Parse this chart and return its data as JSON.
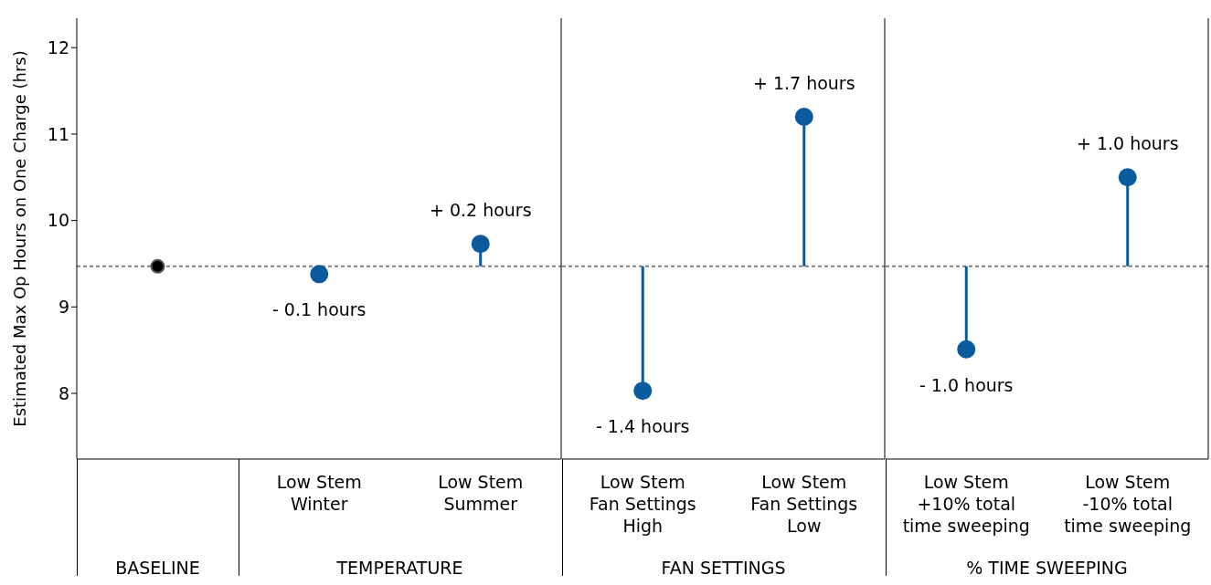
{
  "chart_data": [
    {
      "type": "scatter",
      "xlabel": "BASELINE",
      "ylabel": "Estimated Max Op Hours on One Charge (hrs)",
      "categories": [
        null
      ],
      "values": [
        9.47
      ],
      "color": "#000000",
      "marker": "circle",
      "ylim": [
        7.24,
        12.34
      ],
      "yticks": [
        8,
        9,
        10,
        11,
        12
      ],
      "ref_lines": [
        {
          "axis": "y",
          "value": 9.47,
          "color": "#808080",
          "line_style": "dashed"
        }
      ]
    },
    {
      "type": "scatter",
      "xlabel": "TEMPERATURE",
      "categories": [
        "Low Stem\nWinter",
        "Low Stem\nSummer"
      ],
      "values": [
        9.38,
        9.73
      ],
      "errors": [
        [
          9.38,
          9.47
        ],
        [
          9.47,
          9.73
        ]
      ],
      "color": "#0b5a9e",
      "marker": "circle",
      "ylim": [
        7.24,
        12.34
      ],
      "yticks": [
        8,
        9,
        10,
        11,
        12
      ],
      "tick_labels": "x",
      "annotations": [
        {
          "text": "- 0.1 hours",
          "x": "Low Stem\nWinter",
          "y": 9.38
        },
        {
          "text": "+ 0.2 hours",
          "x": "Low Stem\nSummer",
          "y": 9.73
        }
      ],
      "ref_lines": [
        {
          "axis": "y",
          "value": 9.47,
          "color": "#808080",
          "line_style": "dashed"
        }
      ]
    },
    {
      "type": "scatter",
      "xlabel": "FAN SETTINGS",
      "categories": [
        "Low Stem\nFan Settings\nHigh",
        "Low Stem\nFan Settings\nLow"
      ],
      "values": [
        8.03,
        11.2
      ],
      "errors": [
        [
          8.03,
          9.47
        ],
        [
          9.47,
          11.2
        ]
      ],
      "color": "#0b5a9e",
      "marker": "circle",
      "ylim": [
        7.24,
        12.34
      ],
      "yticks": [
        8,
        9,
        10,
        11,
        12
      ],
      "tick_labels": "x",
      "annotations": [
        {
          "text": "- 1.4 hours",
          "x": "Low Stem\nFan Settings\nHigh",
          "y": 8.03
        },
        {
          "text": "+ 1.7 hours",
          "x": "Low Stem\nFan Settings\nLow",
          "y": 11.2
        }
      ],
      "ref_lines": [
        {
          "axis": "y",
          "value": 9.47,
          "color": "#808080",
          "line_style": "dashed"
        }
      ]
    },
    {
      "type": "scatter",
      "xlabel": "% TIME SWEEPING",
      "categories": [
        "Low Stem\n+10% total\ntime sweeping",
        "Low Stem\n-10% total\ntime sweeping"
      ],
      "values": [
        8.51,
        10.5
      ],
      "errors": [
        [
          8.51,
          9.47
        ],
        [
          9.47,
          10.5
        ]
      ],
      "color": "#0b5a9e",
      "marker": "circle",
      "ylim": [
        7.24,
        12.34
      ],
      "yticks": [
        8,
        9,
        10,
        11,
        12
      ],
      "tick_labels": "x",
      "annotations": [
        {
          "text": "- 1.0 hours",
          "x": "Low Stem\n+10% total\ntime sweeping",
          "y": 8.51
        },
        {
          "text": "+ 1.0 hours",
          "x": "Low Stem\n-10% total\ntime sweeping",
          "y": 10.5
        }
      ],
      "ref_lines": [
        {
          "axis": "y",
          "value": 9.47,
          "color": "#808080",
          "line_style": "dashed"
        }
      ]
    }
  ]
}
